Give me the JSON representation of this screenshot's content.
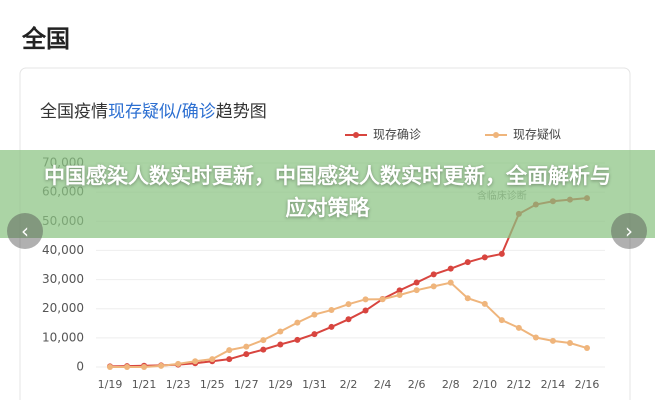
{
  "header": {
    "title": "全国"
  },
  "banner": {
    "text": "中国感染人数实时更新，中国感染人数实时更新，全面解析与应对策略"
  },
  "chart_data": {
    "type": "line",
    "title_parts": [
      "全国疫情",
      "现存疑似/确诊",
      "趋势图"
    ],
    "annotation": "含临床诊断",
    "categories": [
      "1/19",
      null,
      "1/21",
      null,
      "1/23",
      null,
      "1/25",
      null,
      "1/27",
      null,
      "1/29",
      null,
      "1/31",
      null,
      "2/2",
      null,
      "2/4",
      null,
      "2/6",
      null,
      "2/8",
      null,
      "2/10",
      null,
      "2/12",
      null,
      "2/14",
      null,
      "2/16"
    ],
    "series": [
      {
        "name": "现存确诊",
        "color": "#d8453f",
        "values": [
          200,
          291,
          440,
          571,
          830,
          1287,
          1975,
          2684,
          4409,
          5959,
          7736,
          9308,
          11289,
          13748,
          16369,
          19381,
          23322,
          26302,
          28985,
          31774,
          33738,
          35982,
          37626,
          38800,
          52526,
          55748,
          56873,
          57416,
          57934
        ]
      },
      {
        "name": "现存疑似",
        "color": "#efb57c",
        "values": [
          0,
          0,
          0,
          393,
          1072,
          1965,
          2684,
          5794,
          6973,
          9239,
          12167,
          15238,
          17988,
          19544,
          21558,
          23214,
          23260,
          24702,
          26359,
          27657,
          28942,
          23589,
          21675,
          16067,
          13435,
          10109,
          8969,
          8228,
          6500
        ]
      }
    ],
    "ylim": [
      0,
      70000
    ],
    "yticks": [
      0,
      {
        "value": 10000,
        "label": "10,000"
      },
      {
        "value": 20000,
        "label": "20,000"
      },
      {
        "value": 30000,
        "label": "30,000"
      },
      {
        "value": 40000,
        "label": "40,000"
      },
      {
        "value": 50000,
        "label": "50,000"
      },
      {
        "value": 60000,
        "label": "60,000"
      },
      {
        "value": 70000,
        "label": "70,000"
      }
    ],
    "grid": true,
    "legend": "top-right"
  }
}
